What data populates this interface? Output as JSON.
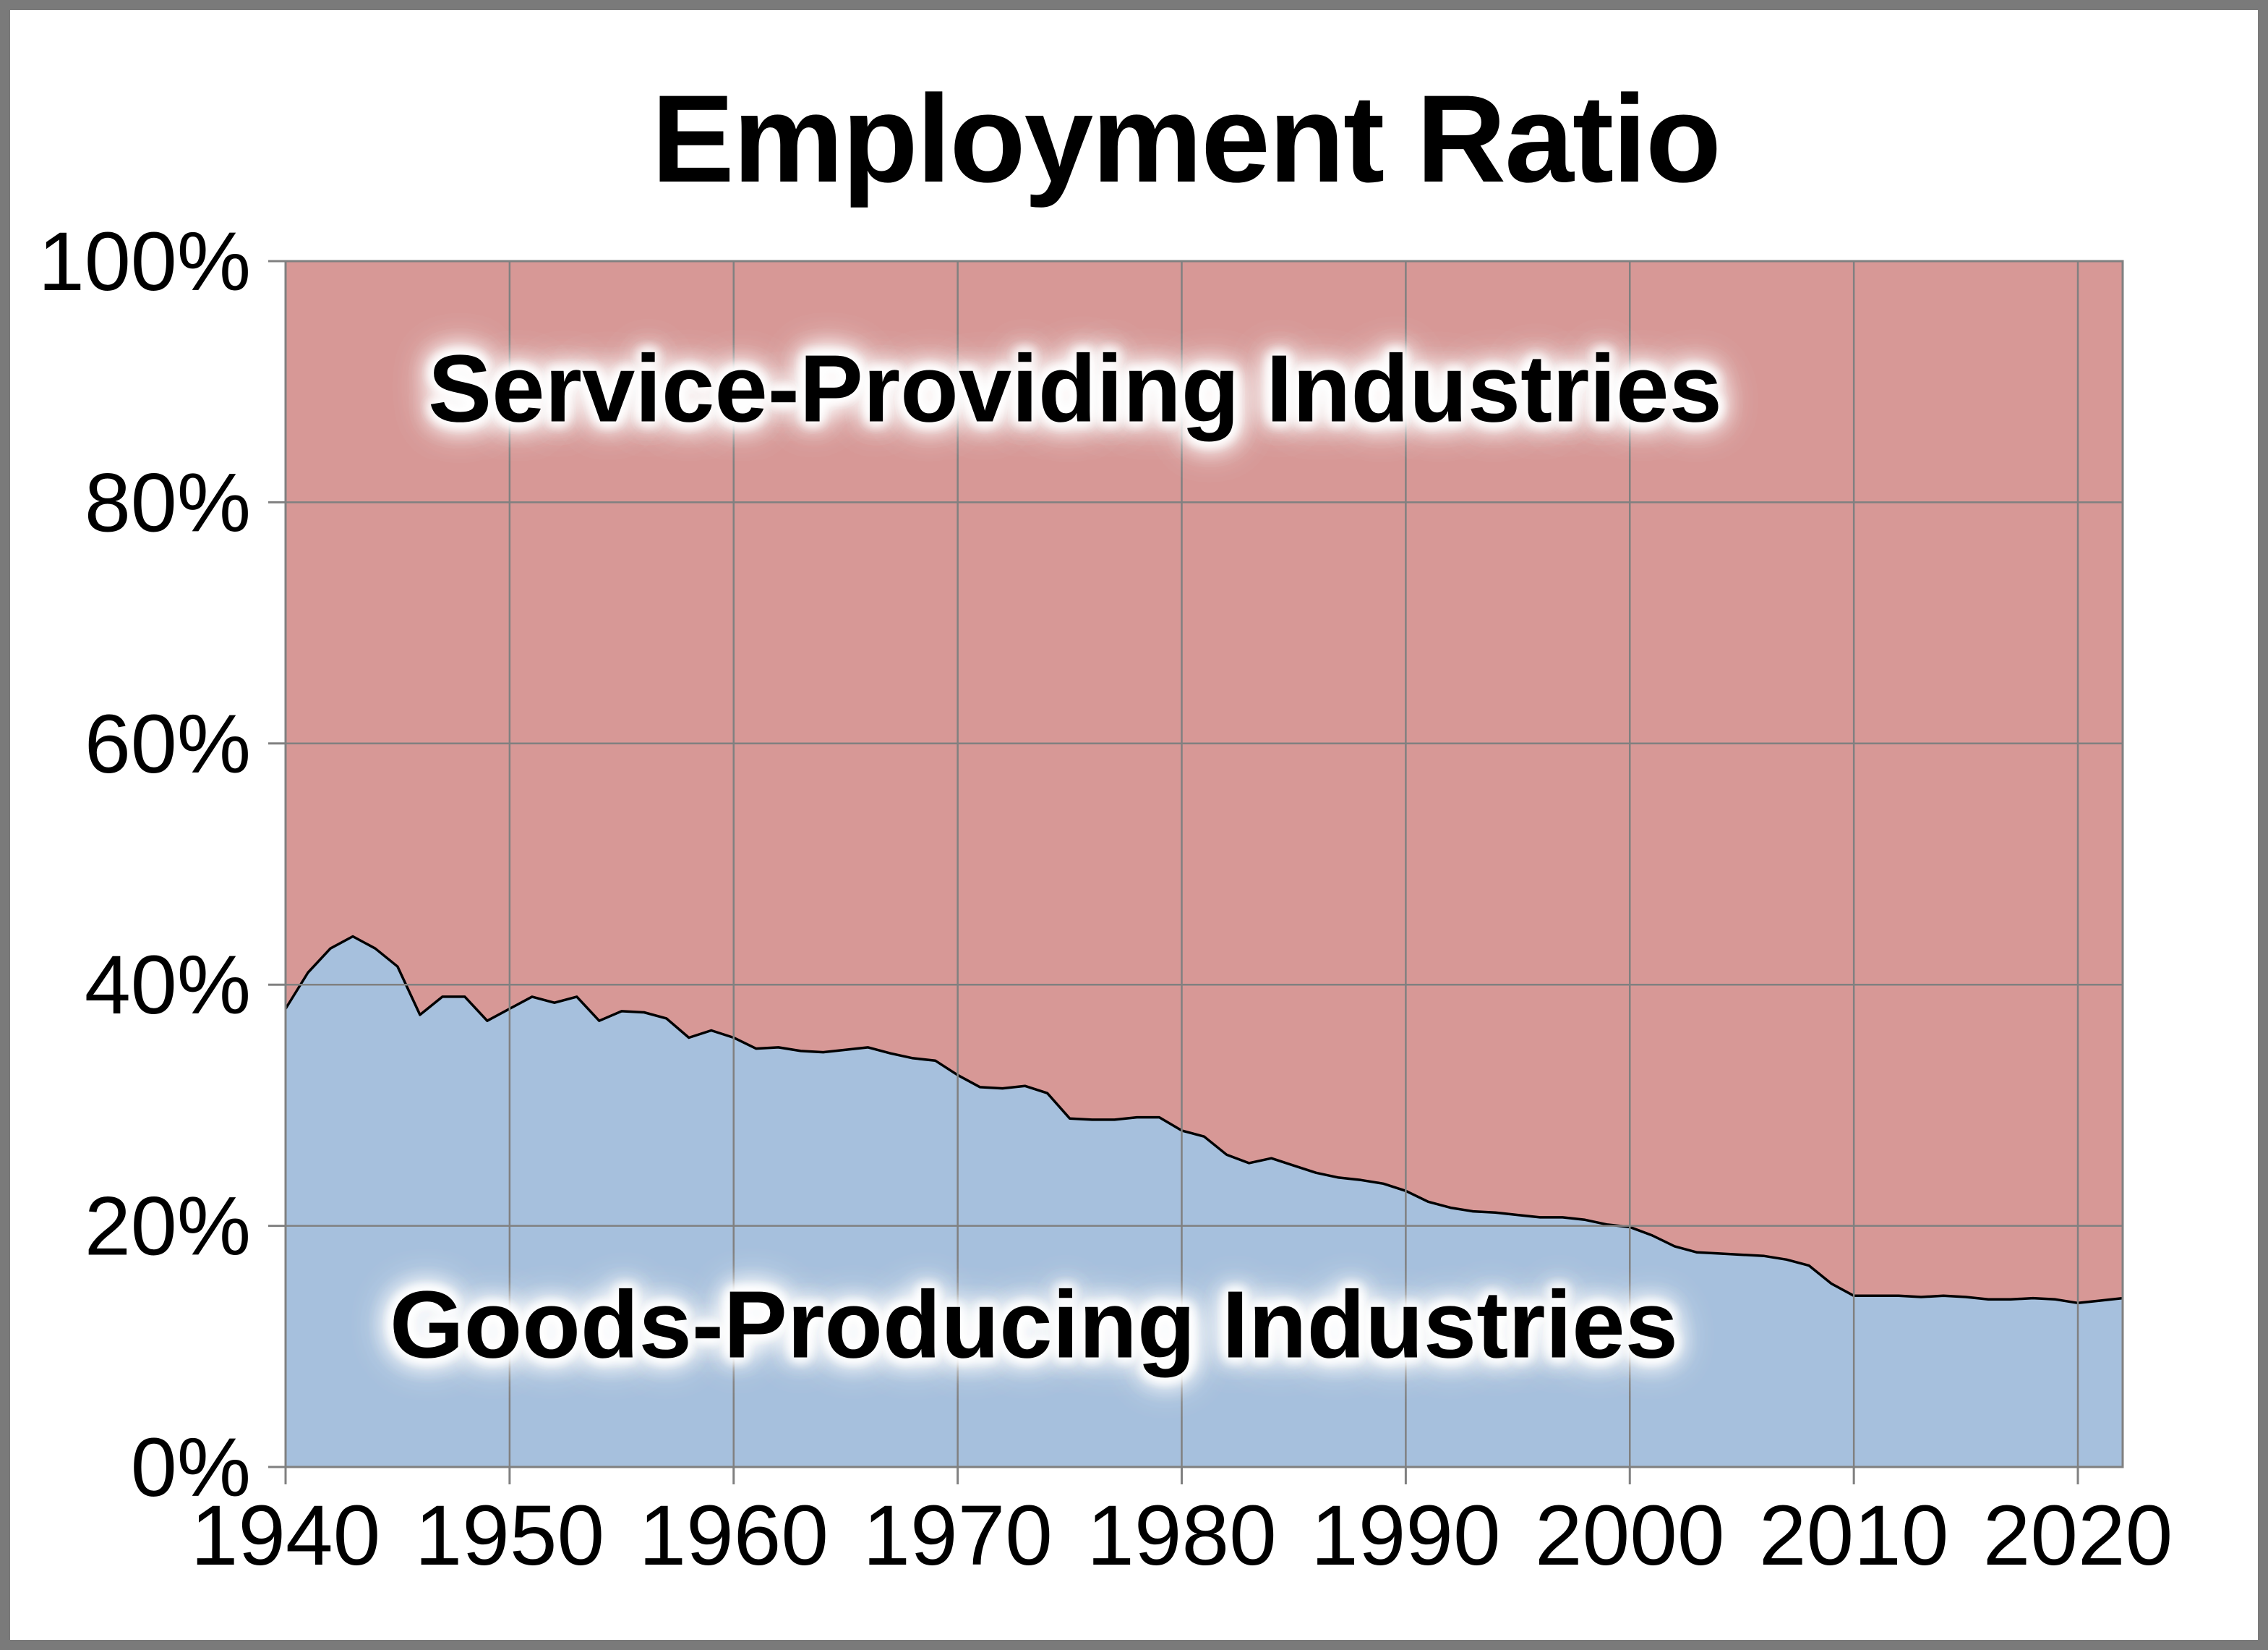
{
  "page": {
    "background": "#ffffff",
    "frame_color": "#7a7a7a",
    "gridline_color": "#808080",
    "axis_color": "#808080"
  },
  "chart_data": {
    "type": "area",
    "stacked_percent": true,
    "title": "Employment Ratio",
    "xlabel": "",
    "ylabel": "",
    "xlim": [
      1940,
      2022
    ],
    "ylim": [
      0,
      100
    ],
    "grid": true,
    "legend_position": "labels-inside-areas",
    "x_ticks": [
      1940,
      1950,
      1960,
      1970,
      1980,
      1990,
      2000,
      2010,
      2020
    ],
    "y_ticks": [
      0,
      20,
      40,
      60,
      80,
      100
    ],
    "y_tick_labels": [
      "0%",
      "20%",
      "40%",
      "60%",
      "80%",
      "100%"
    ],
    "years": [
      1940,
      1941,
      1942,
      1943,
      1944,
      1945,
      1946,
      1947,
      1948,
      1949,
      1950,
      1951,
      1952,
      1953,
      1954,
      1955,
      1956,
      1957,
      1958,
      1959,
      1960,
      1961,
      1962,
      1963,
      1964,
      1965,
      1966,
      1967,
      1968,
      1969,
      1970,
      1971,
      1972,
      1973,
      1974,
      1975,
      1976,
      1977,
      1978,
      1979,
      1980,
      1981,
      1982,
      1983,
      1984,
      1985,
      1986,
      1987,
      1988,
      1989,
      1990,
      1991,
      1992,
      1993,
      1994,
      1995,
      1996,
      1997,
      1998,
      1999,
      2000,
      2001,
      2002,
      2003,
      2004,
      2005,
      2006,
      2007,
      2008,
      2009,
      2010,
      2011,
      2012,
      2013,
      2014,
      2015,
      2016,
      2017,
      2018,
      2019,
      2020,
      2021,
      2022
    ],
    "series": [
      {
        "name": "Goods-Producing Industries",
        "color": "#a6c0dd",
        "line_color": "#000000",
        "values": [
          38.0,
          41.0,
          43.0,
          44.0,
          43.0,
          41.5,
          37.5,
          39.0,
          39.0,
          37.0,
          38.0,
          39.0,
          38.5,
          39.0,
          37.0,
          37.8,
          37.7,
          37.2,
          35.6,
          36.2,
          35.6,
          34.7,
          34.8,
          34.5,
          34.4,
          34.6,
          34.8,
          34.3,
          33.9,
          33.7,
          32.5,
          31.5,
          31.4,
          31.6,
          31.0,
          28.9,
          28.8,
          28.8,
          29.0,
          29.0,
          27.9,
          27.4,
          25.9,
          25.2,
          25.6,
          25.0,
          24.4,
          24.0,
          23.8,
          23.5,
          22.9,
          22.0,
          21.5,
          21.2,
          21.1,
          20.9,
          20.7,
          20.7,
          20.5,
          20.1,
          19.9,
          19.2,
          18.3,
          17.8,
          17.7,
          17.6,
          17.5,
          17.2,
          16.7,
          15.2,
          14.2,
          14.2,
          14.2,
          14.1,
          14.2,
          14.1,
          13.9,
          13.9,
          14.0,
          13.9,
          13.6,
          13.8,
          14.0
        ]
      },
      {
        "name": "Service-Providing Industries",
        "color": "#d79896",
        "values": [
          62.0,
          59.0,
          57.0,
          56.0,
          57.0,
          58.5,
          62.5,
          61.0,
          61.0,
          63.0,
          62.0,
          61.0,
          61.5,
          61.0,
          63.0,
          62.2,
          62.3,
          62.8,
          64.4,
          63.8,
          64.4,
          65.3,
          65.2,
          65.5,
          65.6,
          65.4,
          65.2,
          65.7,
          66.1,
          66.3,
          67.5,
          68.5,
          68.6,
          68.4,
          69.0,
          71.1,
          71.2,
          71.2,
          71.0,
          71.0,
          72.1,
          72.6,
          74.1,
          74.8,
          74.4,
          75.0,
          75.6,
          76.0,
          76.2,
          76.5,
          77.1,
          78.0,
          78.5,
          78.8,
          78.9,
          79.1,
          79.3,
          79.3,
          79.5,
          79.9,
          80.1,
          80.8,
          81.7,
          82.2,
          82.3,
          82.4,
          82.5,
          82.8,
          83.3,
          84.8,
          85.8,
          85.8,
          85.8,
          85.9,
          85.8,
          85.9,
          86.1,
          86.1,
          86.0,
          86.1,
          86.4,
          86.2,
          86.0
        ]
      }
    ]
  }
}
